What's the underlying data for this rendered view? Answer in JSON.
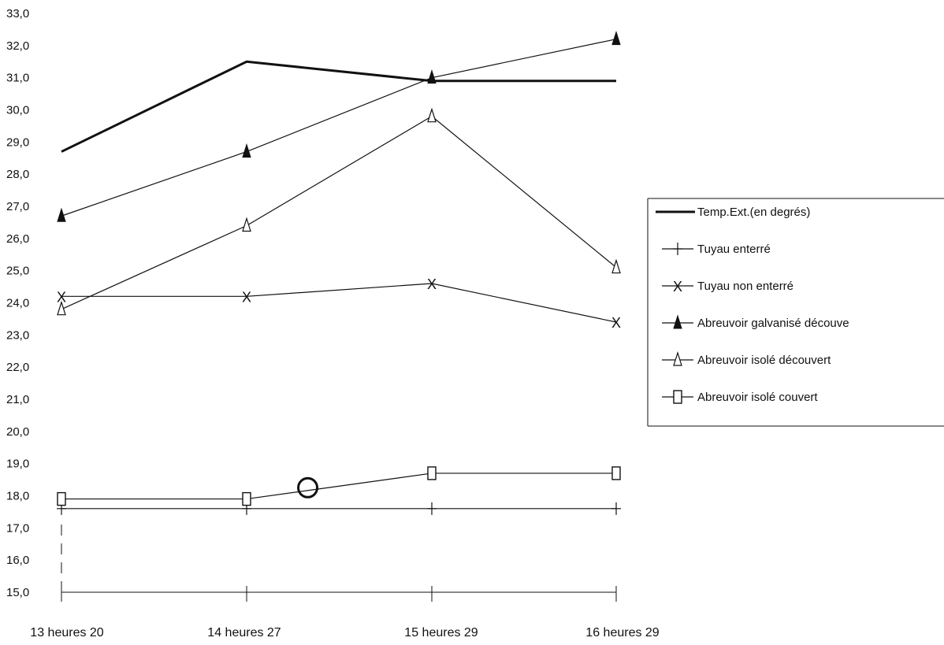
{
  "chart_data": {
    "type": "line",
    "title": "",
    "xlabel": "",
    "ylabel": "",
    "categories": [
      "13 heures 20",
      "14 heures 27",
      "15 heures 29",
      "16 heures 29"
    ],
    "ylim": [
      15,
      33
    ],
    "yticks": [
      "15,0",
      "16,0",
      "17,0",
      "18,0",
      "19,0",
      "20,0",
      "21,0",
      "22,0",
      "23,0",
      "24,0",
      "25,0",
      "26,0",
      "27,0",
      "28,0",
      "29,0",
      "30,0",
      "31,0",
      "32,0",
      "33,0"
    ],
    "grid": false,
    "legend_position": "right",
    "series": [
      {
        "name": "Temp.Ext.(en degrés)",
        "marker": "none",
        "thick": true,
        "values": [
          28.7,
          31.5,
          30.9,
          30.9
        ]
      },
      {
        "name": "Tuyau enterré",
        "marker": "plus",
        "thick": false,
        "values": [
          17.6,
          17.6,
          17.6,
          17.6
        ]
      },
      {
        "name": "Tuyau non enterré",
        "marker": "x",
        "thick": false,
        "values": [
          24.2,
          24.2,
          24.6,
          23.4
        ]
      },
      {
        "name": "Abreuvoir galvanisé découve",
        "marker": "filled-triangle",
        "thick": false,
        "values": [
          26.7,
          28.7,
          31.0,
          32.2
        ]
      },
      {
        "name": "Abreuvoir isolé découvert",
        "marker": "open-triangle",
        "thick": false,
        "values": [
          23.8,
          26.4,
          29.8,
          25.1
        ]
      },
      {
        "name": "Abreuvoir isolé couvert",
        "marker": "open-square",
        "thick": false,
        "values": [
          17.9,
          17.9,
          18.7,
          18.7
        ]
      }
    ],
    "annotations": [
      {
        "type": "circle",
        "x_between": [
          1,
          2
        ],
        "x_frac": 0.33,
        "y": 18.25
      }
    ]
  }
}
